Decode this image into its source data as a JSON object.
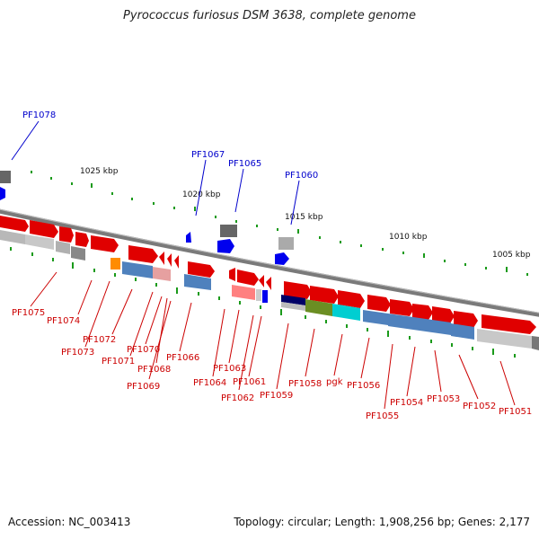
{
  "title": "Pyrococcus furiosus DSM 3638, complete genome",
  "footer": {
    "accession": "Accession: NC_003413",
    "summary": "Topology: circular; Length: 1,908,256 bp; Genes: 2,177"
  },
  "colors": {
    "backbone": "#888888",
    "forward_gene": "#ff0000",
    "reverse_gene_label": "#cc0000",
    "top_label": "#0000cc",
    "scale_tick": "#009900"
  },
  "scale_labels": [
    "1025 kbp",
    "1020 kbp",
    "1015 kbp",
    "1010 kbp",
    "1005 kbp"
  ],
  "top_labels": [
    "PF1078",
    "PF1067",
    "PF1065",
    "PF1060"
  ],
  "bottom_labels": [
    "PF1075",
    "PF1074",
    "PF1073",
    "PF1072",
    "PF1071",
    "PF1070",
    "PF1068",
    "PF1069",
    "PF1066",
    "PF1064",
    "PF1063",
    "PF1062",
    "PF1061",
    "PF1059",
    "PF1058",
    "pgk",
    "PF1056",
    "PF1055",
    "PF1054",
    "PF1053",
    "PF1052",
    "PF1051"
  ]
}
